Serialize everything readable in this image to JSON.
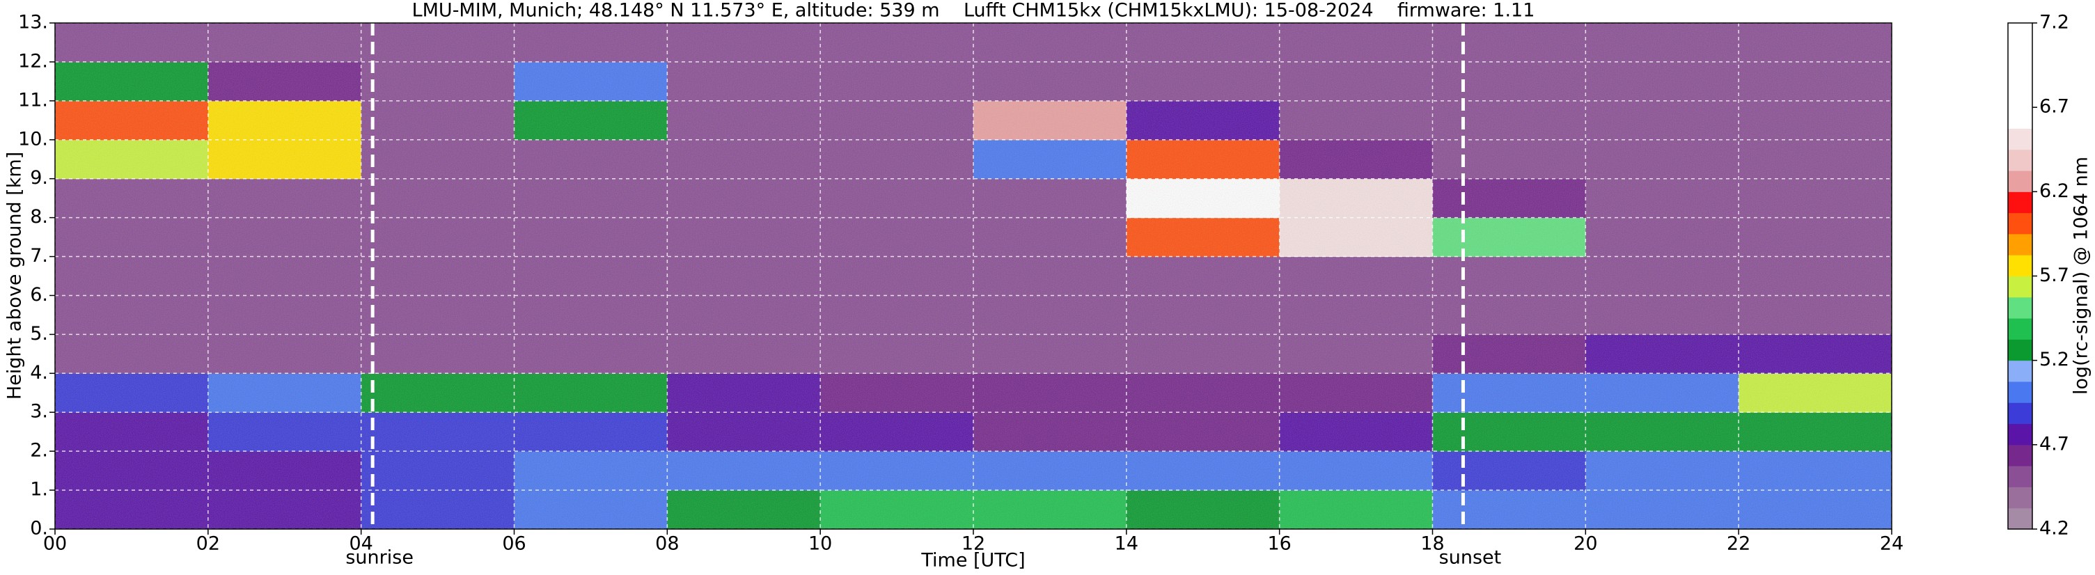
{
  "chart_data": {
    "type": "heatmap",
    "title": "LMU-MIM, Munich; 48.148° N 11.573° E, altitude: 539 m    Lufft CHM15kx (CHM15kxLMU): 15-08-2024    firmware: 1.11",
    "x_label": "Time [UTC]",
    "y_label": "Height above ground [km]",
    "colorbar_label": "log(rc-signal) @ 1064 nm",
    "x_edges": [
      0,
      2,
      4,
      6,
      8,
      10,
      12,
      14,
      16,
      18,
      20,
      22,
      24
    ],
    "y_edges": [
      0,
      1,
      2,
      3,
      4,
      5,
      6,
      7,
      8,
      9,
      10,
      11,
      12,
      13
    ],
    "z": [
      [
        4.8,
        4.8,
        4.9,
        5.0,
        5.3,
        5.4,
        5.4,
        5.3,
        5.4,
        5.0,
        5.0,
        5.0
      ],
      [
        4.7,
        4.8,
        4.9,
        5.0,
        5.0,
        5.0,
        5.0,
        5.0,
        5.0,
        4.9,
        5.0,
        5.0
      ],
      [
        4.8,
        4.9,
        4.9,
        4.9,
        4.8,
        4.7,
        4.6,
        4.6,
        4.7,
        5.2,
        5.2,
        5.3
      ],
      [
        4.9,
        5.0,
        5.2,
        5.2,
        4.7,
        4.6,
        4.6,
        4.6,
        4.6,
        5.0,
        5.0,
        5.6
      ],
      [
        4.5,
        4.5,
        4.5,
        4.5,
        4.5,
        4.5,
        4.5,
        4.5,
        4.5,
        4.6,
        4.8,
        4.8
      ],
      [
        4.5,
        4.5,
        4.5,
        4.5,
        4.5,
        4.5,
        4.5,
        4.5,
        4.5,
        4.5,
        4.5,
        4.5
      ],
      [
        4.5,
        4.5,
        4.5,
        4.5,
        4.5,
        4.5,
        4.5,
        4.5,
        4.5,
        4.5,
        4.5,
        4.5
      ],
      [
        4.5,
        4.5,
        4.5,
        4.5,
        4.5,
        4.5,
        4.5,
        6.0,
        6.5,
        5.5,
        4.5,
        4.5
      ],
      [
        4.5,
        4.5,
        4.5,
        4.5,
        4.5,
        4.5,
        4.5,
        6.8,
        6.5,
        4.6,
        4.5,
        4.5
      ],
      [
        5.6,
        5.8,
        4.5,
        4.5,
        4.5,
        4.5,
        5.0,
        6.0,
        4.6,
        4.5,
        4.5,
        4.5
      ],
      [
        6.0,
        5.8,
        4.5,
        5.2,
        4.5,
        4.5,
        6.2,
        4.8,
        4.5,
        4.5,
        4.5,
        4.5
      ],
      [
        5.2,
        4.6,
        4.5,
        5.0,
        4.5,
        4.5,
        4.5,
        4.5,
        4.5,
        4.5,
        4.5,
        4.5
      ],
      [
        4.5,
        4.5,
        4.5,
        4.5,
        4.5,
        4.5,
        4.5,
        4.5,
        4.5,
        4.5,
        4.5,
        4.5
      ]
    ],
    "xlim": [
      0,
      24
    ],
    "ylim": [
      0,
      13
    ],
    "xticks": [
      {
        "value": 0,
        "label": "00"
      },
      {
        "value": 2,
        "label": "02"
      },
      {
        "value": 4,
        "label": "04"
      },
      {
        "value": 6,
        "label": "06"
      },
      {
        "value": 8,
        "label": "08"
      },
      10,
      12,
      14,
      16,
      18,
      20,
      22,
      24
    ],
    "yticks": [
      {
        "value": 0,
        "label": "0."
      },
      {
        "value": 1,
        "label": "1."
      },
      {
        "value": 2,
        "label": "2."
      },
      {
        "value": 3,
        "label": "3."
      },
      {
        "value": 4,
        "label": "4."
      },
      {
        "value": 5,
        "label": "5."
      },
      {
        "value": 6,
        "label": "6."
      },
      {
        "value": 7,
        "label": "7."
      },
      {
        "value": 8,
        "label": "8."
      },
      {
        "value": 9,
        "label": "9."
      },
      {
        "value": 10,
        "label": "10."
      },
      {
        "value": 11,
        "label": "11."
      },
      {
        "value": 12,
        "label": "12."
      },
      {
        "value": 13,
        "label": "13."
      }
    ],
    "grid": true,
    "clim": [
      4.2,
      7.2
    ],
    "cticks": [
      4.2,
      4.7,
      5.2,
      5.7,
      6.2,
      6.7,
      7.2
    ],
    "colormap": [
      "#a68ba6",
      "#9a6f9c",
      "#8a4f94",
      "#76288c",
      "#5a14a8",
      "#3c3cd8",
      "#4a78f0",
      "#8aaef8",
      "#0a9a30",
      "#20c050",
      "#60e080",
      "#c8f040",
      "#ffe000",
      "#ffa000",
      "#ff5010",
      "#ff1010",
      "#e8a0a0",
      "#f0c8c8",
      "#f4e0e0",
      "#ffffff",
      "#ffffff",
      "#ffffff",
      "#ffffff",
      "#ffffff"
    ],
    "annotations": [
      {
        "x": 4.15,
        "label": "sunrise"
      },
      {
        "x": 18.4,
        "label": "sunset"
      }
    ]
  }
}
